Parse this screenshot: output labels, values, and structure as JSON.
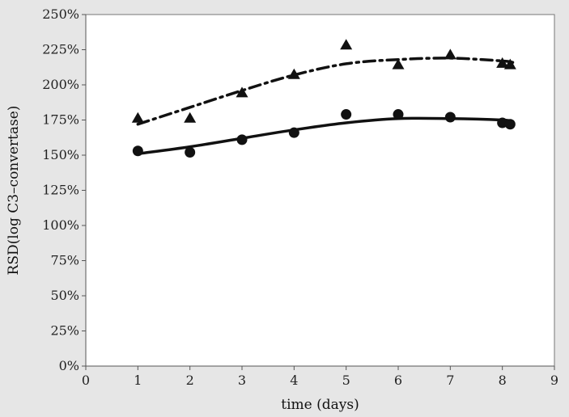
{
  "chart_data": {
    "type": "scatter",
    "xlabel": "time (days)",
    "ylabel": "RSD(log C3–convertase)",
    "xlim": [
      0,
      9
    ],
    "ylim": [
      0,
      250
    ],
    "x_ticks": [
      0,
      1,
      2,
      3,
      4,
      5,
      6,
      7,
      8,
      9
    ],
    "y_ticks": [
      0,
      25,
      50,
      75,
      100,
      125,
      150,
      175,
      200,
      225,
      250
    ],
    "x_tick_labels": [
      "0",
      "1",
      "2",
      "3",
      "4",
      "5",
      "6",
      "7",
      "8",
      "9"
    ],
    "y_tick_labels": [
      "0%",
      "25%",
      "50%",
      "75%",
      "100%",
      "125%",
      "150%",
      "175%",
      "200%",
      "225%",
      "250%"
    ],
    "y_unit": "%",
    "grid": false,
    "legend": "none",
    "colors": {
      "background": "#e6e6e6",
      "plot_area": "#ffffff",
      "marks": "#111111",
      "axis": "#555555"
    },
    "series": [
      {
        "marker": "triangle",
        "points": [
          {
            "x": 1,
            "y": 176
          },
          {
            "x": 2,
            "y": 176
          },
          {
            "x": 3,
            "y": 194
          },
          {
            "x": 4,
            "y": 207
          },
          {
            "x": 5,
            "y": 228
          },
          {
            "x": 6,
            "y": 214
          },
          {
            "x": 7,
            "y": 221
          },
          {
            "x": 8,
            "y": 215
          },
          {
            "x": 8.15,
            "y": 214
          }
        ],
        "trend": {
          "style": "dash-dot",
          "points": [
            {
              "x": 1,
              "y": 172
            },
            {
              "x": 2,
              "y": 184
            },
            {
              "x": 3,
              "y": 196
            },
            {
              "x": 4,
              "y": 207
            },
            {
              "x": 5,
              "y": 215
            },
            {
              "x": 6,
              "y": 218
            },
            {
              "x": 7,
              "y": 219
            },
            {
              "x": 8,
              "y": 217
            },
            {
              "x": 8.2,
              "y": 216
            }
          ]
        }
      },
      {
        "marker": "circle",
        "points": [
          {
            "x": 1,
            "y": 153
          },
          {
            "x": 2,
            "y": 152
          },
          {
            "x": 3,
            "y": 161
          },
          {
            "x": 4,
            "y": 166
          },
          {
            "x": 5,
            "y": 179
          },
          {
            "x": 6,
            "y": 179
          },
          {
            "x": 7,
            "y": 177
          },
          {
            "x": 8,
            "y": 173
          },
          {
            "x": 8.15,
            "y": 172
          }
        ],
        "trend": {
          "style": "solid",
          "points": [
            {
              "x": 1,
              "y": 151
            },
            {
              "x": 2,
              "y": 156
            },
            {
              "x": 3,
              "y": 162
            },
            {
              "x": 4,
              "y": 168
            },
            {
              "x": 5,
              "y": 173
            },
            {
              "x": 6,
              "y": 176
            },
            {
              "x": 7,
              "y": 176
            },
            {
              "x": 8,
              "y": 175
            },
            {
              "x": 8.2,
              "y": 174
            }
          ]
        }
      }
    ]
  }
}
